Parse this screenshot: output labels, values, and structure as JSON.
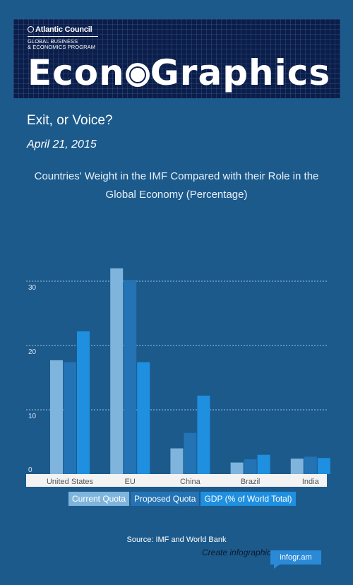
{
  "banner": {
    "org_name": "Atlantic Council",
    "program_line1": "GLOBAL BUSINESS",
    "program_line2": "& ECONOMICS PROGRAM",
    "brand_left": "Econ",
    "brand_right": "Graphics"
  },
  "post": {
    "title": "Exit, or Voice?",
    "date": "April 21, 2015"
  },
  "chart_data": {
    "type": "bar",
    "title": "Countries' Weight in the IMF Compared with their Role in the Global Economy (Percentage)",
    "categories": [
      "United States",
      "EU",
      "China",
      "Brazil",
      "India"
    ],
    "series": [
      {
        "name": "Current Quota",
        "color": "#7fb5dc",
        "values": [
          17.7,
          32.0,
          4.0,
          1.8,
          2.4
        ]
      },
      {
        "name": "Proposed Quota",
        "color": "#2473b4",
        "values": [
          17.4,
          30.2,
          6.4,
          2.3,
          2.7
        ]
      },
      {
        "name": "GDP (% of World Total)",
        "color": "#1f8fe0",
        "values": [
          22.2,
          17.4,
          12.2,
          3.0,
          2.5
        ]
      }
    ],
    "y_ticks": [
      0,
      10,
      20,
      30
    ],
    "ylim": [
      0,
      33
    ],
    "grid": true,
    "legend_position": "bottom"
  },
  "footer": {
    "source": "Source: IMF and World Bank",
    "create_text": "Create infographics",
    "badge": "infogr.am"
  }
}
